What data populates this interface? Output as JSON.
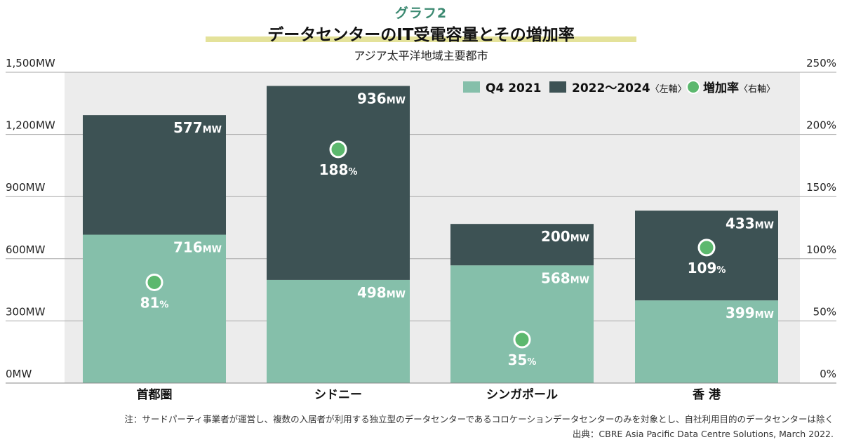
{
  "header": {
    "graph_label": "グラフ2",
    "title": "データセンターのIT受電容量とその増加率",
    "subtitle": "アジア太平洋地域主要都市"
  },
  "colors": {
    "q4_2021": "#85bfaa",
    "y2022_2024": "#3d5254",
    "growth_marker": "#5cb86e",
    "plot_background": "#ececec",
    "title_highlight": "#e4e29a",
    "graph_label": "#3d8a72"
  },
  "chart_data": {
    "type": "bar",
    "stacked": true,
    "categories": [
      "首都圏",
      "シドニー",
      "シンガポール",
      "香 港"
    ],
    "series": [
      {
        "name": "Q4 2021",
        "values": [
          716,
          498,
          568,
          399
        ],
        "unit": "MW"
      },
      {
        "name": "2022〜2024",
        "axis_note": "〈左軸〉",
        "values": [
          577,
          936,
          200,
          433
        ],
        "unit": "MW"
      }
    ],
    "growth_rate": {
      "name": "増加率",
      "axis_note": "〈右軸〉",
      "values": [
        81,
        188,
        35,
        109
      ],
      "unit": "%"
    },
    "left_axis": {
      "min": 0,
      "max": 1500,
      "ticks": [
        0,
        300,
        600,
        900,
        1200,
        1500
      ],
      "tick_labels": [
        "0MW",
        "300MW",
        "600MW",
        "900MW",
        "1,200MW",
        "1,500MW"
      ]
    },
    "right_axis": {
      "min": 0,
      "max": 250,
      "ticks": [
        0,
        50,
        100,
        150,
        200,
        250
      ],
      "tick_labels": [
        "0%",
        "50%",
        "100%",
        "150%",
        "200%",
        "250%"
      ]
    },
    "grid": true,
    "legend_position": "top-right"
  },
  "notes": {
    "note": "注：サードパーティ事業者が運営し、複数の入居者が利用する独立型のデータセンターであるコロケーションデータセンターのみを対象とし、自社利用目的のデータセンターは除く",
    "source": "出典：CBRE Asia Pacific Data Centre Solutions, March 2022."
  }
}
